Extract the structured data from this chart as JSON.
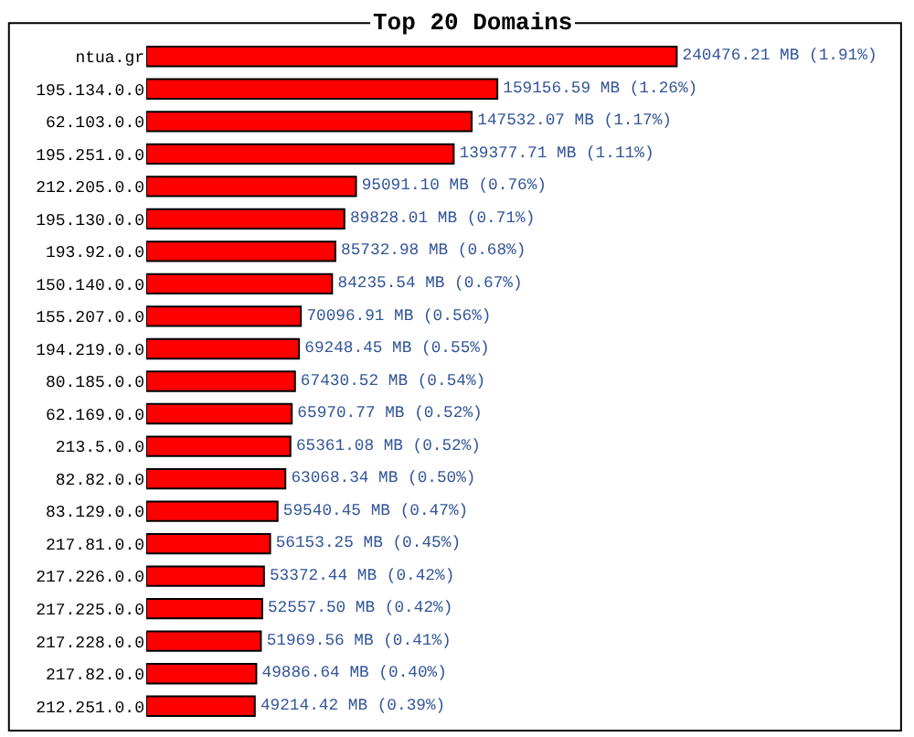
{
  "chart_data": {
    "type": "bar",
    "orientation": "horizontal",
    "title": "Top 20 Domains",
    "categories": [
      "ntua.gr",
      "195.134.0.0",
      "62.103.0.0",
      "195.251.0.0",
      "212.205.0.0",
      "195.130.0.0",
      "193.92.0.0",
      "150.140.0.0",
      "155.207.0.0",
      "194.219.0.0",
      "80.185.0.0",
      "62.169.0.0",
      "213.5.0.0",
      "82.82.0.0",
      "83.129.0.0",
      "217.81.0.0",
      "217.226.0.0",
      "217.225.0.0",
      "217.228.0.0",
      "217.82.0.0",
      "212.251.0.0"
    ],
    "values": [
      240476.21,
      159156.59,
      147532.07,
      139377.71,
      95091.1,
      89828.01,
      85732.98,
      84235.54,
      70096.91,
      69248.45,
      67430.52,
      65970.77,
      65361.08,
      63068.34,
      59540.45,
      56153.25,
      53372.44,
      52557.5,
      51969.56,
      49886.64,
      49214.42
    ],
    "value_labels": [
      "240476.21 MB (1.91%)",
      "159156.59 MB (1.26%)",
      "147532.07 MB (1.17%)",
      "139377.71 MB (1.11%)",
      "95091.10 MB (0.76%)",
      "89828.01 MB (0.71%)",
      "85732.98 MB (0.68%)",
      "84235.54 MB (0.67%)",
      "70096.91 MB (0.56%)",
      "69248.45 MB (0.55%)",
      "67430.52 MB (0.54%)",
      "65970.77 MB (0.52%)",
      "65361.08 MB (0.52%)",
      "63068.34 MB (0.50%)",
      "59540.45 MB (0.47%)",
      "56153.25 MB (0.45%)",
      "53372.44 MB (0.42%)",
      "52557.50 MB (0.42%)",
      "51969.56 MB (0.41%)",
      "49886.64 MB (0.40%)",
      "49214.42 MB (0.39%)"
    ],
    "color": "#ff0000",
    "legend": false
  }
}
